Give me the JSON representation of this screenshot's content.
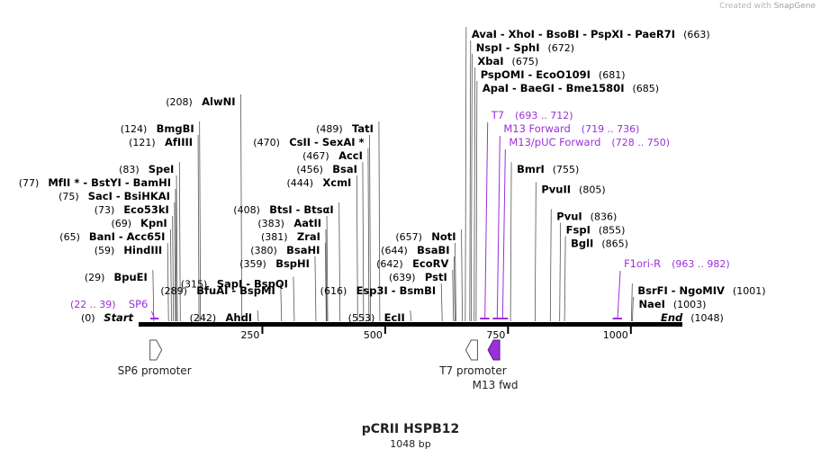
{
  "credit": {
    "prefix": "Created with",
    "brand": "SnapGene"
  },
  "plasmid": {
    "name": "pCRII HSPB12",
    "length_label": "1048 bp",
    "length": 1048
  },
  "colors": {
    "backbone": "#000000",
    "feature": "#9b30d9",
    "enzyme_text": "#000000",
    "position_text": "#000000"
  },
  "ticks": [
    {
      "pos": 250,
      "label": "250"
    },
    {
      "pos": 500,
      "label": "500"
    },
    {
      "pos": 750,
      "label": "750"
    },
    {
      "pos": 1000,
      "label": "1000"
    }
  ],
  "labels": [
    {
      "name": "Start",
      "pos_text": "(0)",
      "site": 0,
      "kind": "terminal",
      "side": "left",
      "row": 22
    },
    {
      "name": "SP6",
      "pos_text": "(22 .. 39)",
      "site": 30,
      "kind": "primer",
      "side": "left",
      "row": 21
    },
    {
      "name": "BpuEI",
      "pos_text": "(29)",
      "site": 29,
      "kind": "enzyme",
      "side": "left",
      "row": 19
    },
    {
      "name": "HindIII",
      "pos_text": "(59)",
      "site": 59,
      "kind": "enzyme",
      "side": "left",
      "row": 17
    },
    {
      "name": "BanI - Acc65I",
      "pos_text": "(65)",
      "site": 65,
      "kind": "enzyme",
      "side": "left",
      "row": 16
    },
    {
      "name": "KpnI",
      "pos_text": "(69)",
      "site": 69,
      "kind": "enzyme",
      "side": "left",
      "row": 15
    },
    {
      "name": "Eco53kI",
      "pos_text": "(73)",
      "site": 73,
      "kind": "enzyme",
      "side": "left",
      "row": 14
    },
    {
      "name": "SacI - BsiHKAI",
      "pos_text": "(75)",
      "site": 75,
      "kind": "enzyme",
      "side": "left",
      "row": 13
    },
    {
      "name": "MfII * - BstYI - BamHI",
      "pos_text": "(77)",
      "site": 77,
      "kind": "enzyme",
      "side": "left",
      "row": 12
    },
    {
      "name": "SpeI",
      "pos_text": "(83)",
      "site": 83,
      "kind": "enzyme",
      "side": "left",
      "row": 11
    },
    {
      "name": "AfIIII",
      "pos_text": "(121)",
      "site": 121,
      "kind": "enzyme",
      "side": "left",
      "row": 9
    },
    {
      "name": "BmgBI",
      "pos_text": "(124)",
      "site": 124,
      "kind": "enzyme",
      "side": "left",
      "row": 8
    },
    {
      "name": "AlwNI",
      "pos_text": "(208)",
      "site": 208,
      "kind": "enzyme",
      "side": "left",
      "row": 6
    },
    {
      "name": "BfuAI - BspMI",
      "pos_text": "(289)",
      "site": 289,
      "kind": "enzyme",
      "side": "left",
      "row": 20
    },
    {
      "name": "SapI - BspQI",
      "pos_text": "(315)",
      "site": 315,
      "kind": "enzyme",
      "side": "left",
      "row": 19.5
    },
    {
      "name": "AhdI",
      "pos_text": "(242)",
      "site": 242,
      "kind": "enzyme",
      "side": "left",
      "row": 22
    },
    {
      "name": "BspHI",
      "pos_text": "(359)",
      "site": 359,
      "kind": "enzyme",
      "side": "left",
      "row": 18
    },
    {
      "name": "BsaHI",
      "pos_text": "(380)",
      "site": 380,
      "kind": "enzyme",
      "side": "left",
      "row": 17
    },
    {
      "name": "ZraI",
      "pos_text": "(381)",
      "site": 381,
      "kind": "enzyme",
      "side": "left",
      "row": 16
    },
    {
      "name": "AatII",
      "pos_text": "(383)",
      "site": 383,
      "kind": "enzyme",
      "side": "left",
      "row": 15
    },
    {
      "name": "BtsI - BtsαI",
      "pos_text": "(408)",
      "site": 408,
      "kind": "enzyme",
      "side": "left",
      "row": 14
    },
    {
      "name": "XcmI",
      "pos_text": "(444)",
      "site": 444,
      "kind": "enzyme",
      "side": "left",
      "row": 12
    },
    {
      "name": "BsaI",
      "pos_text": "(456)",
      "site": 456,
      "kind": "enzyme",
      "side": "left",
      "row": 11
    },
    {
      "name": "AccI",
      "pos_text": "(467)",
      "site": 467,
      "kind": "enzyme",
      "side": "left",
      "row": 10
    },
    {
      "name": "CsII - SexAI *",
      "pos_text": "(470)",
      "site": 470,
      "kind": "enzyme",
      "side": "left",
      "row": 9
    },
    {
      "name": "TatI",
      "pos_text": "(489)",
      "site": 489,
      "kind": "enzyme",
      "side": "left",
      "row": 8
    },
    {
      "name": "Esp3I - BsmBI",
      "pos_text": "(616)",
      "site": 616,
      "kind": "enzyme",
      "side": "left",
      "row": 20
    },
    {
      "name": "EcII",
      "pos_text": "(553)",
      "site": 553,
      "kind": "enzyme",
      "side": "left",
      "row": 22
    },
    {
      "name": "PstI",
      "pos_text": "(639)",
      "site": 639,
      "kind": "enzyme",
      "side": "left",
      "row": 19
    },
    {
      "name": "EcoRV",
      "pos_text": "(642)",
      "site": 642,
      "kind": "enzyme",
      "side": "left",
      "row": 18
    },
    {
      "name": "BsaBI",
      "pos_text": "(644)",
      "site": 644,
      "kind": "enzyme",
      "side": "left",
      "row": 17
    },
    {
      "name": "NotI",
      "pos_text": "(657)",
      "site": 657,
      "kind": "enzyme",
      "side": "left",
      "row": 16
    },
    {
      "name": "AvaI - XhoI - BsoBI - PspXI - PaeR7I",
      "pos_text": "(663)",
      "site": 663,
      "kind": "enzyme",
      "side": "right",
      "row": 1
    },
    {
      "name": "NspI - SphI",
      "pos_text": "(672)",
      "site": 672,
      "kind": "enzyme",
      "side": "right",
      "row": 2
    },
    {
      "name": "XbaI",
      "pos_text": "(675)",
      "site": 675,
      "kind": "enzyme",
      "side": "right",
      "row": 3
    },
    {
      "name": "PspOMI - EcoO109I",
      "pos_text": "(681)",
      "site": 681,
      "kind": "enzyme",
      "side": "right",
      "row": 4
    },
    {
      "name": "ApaI - BaeGI - Bme1580I",
      "pos_text": "(685)",
      "site": 685,
      "kind": "enzyme",
      "side": "right",
      "row": 5
    },
    {
      "name": "T7",
      "pos_text": "(693 .. 712)",
      "site": 703,
      "kind": "primer",
      "side": "right",
      "row": 7
    },
    {
      "name": "M13 Forward",
      "pos_text": "(719 .. 736)",
      "site": 728,
      "kind": "primer",
      "side": "right",
      "row": 8
    },
    {
      "name": "M13/pUC Forward",
      "pos_text": "(728 .. 750)",
      "site": 739,
      "kind": "primer",
      "side": "right",
      "row": 9
    },
    {
      "name": "BmrI",
      "pos_text": "(755)",
      "site": 755,
      "kind": "enzyme",
      "side": "right",
      "row": 11
    },
    {
      "name": "PvuII",
      "pos_text": "(805)",
      "site": 805,
      "kind": "enzyme",
      "side": "right",
      "row": 12.5
    },
    {
      "name": "PvuI",
      "pos_text": "(836)",
      "site": 836,
      "kind": "enzyme",
      "side": "right",
      "row": 14.5
    },
    {
      "name": "FspI",
      "pos_text": "(855)",
      "site": 855,
      "kind": "enzyme",
      "side": "right",
      "row": 15.5
    },
    {
      "name": "BglI",
      "pos_text": "(865)",
      "site": 865,
      "kind": "enzyme",
      "side": "right",
      "row": 16.5
    },
    {
      "name": "F1ori-R",
      "pos_text": "(963 .. 982)",
      "site": 973,
      "kind": "primer",
      "side": "right",
      "row": 18
    },
    {
      "name": "BsrFI - NgoMIV",
      "pos_text": "(1001)",
      "site": 1001,
      "kind": "enzyme",
      "side": "right",
      "row": 20
    },
    {
      "name": "NaeI",
      "pos_text": "(1003)",
      "site": 1003,
      "kind": "enzyme",
      "side": "right",
      "row": 21
    },
    {
      "name": "End",
      "pos_text": "(1048)",
      "site": 1048,
      "kind": "terminal",
      "side": "right",
      "row": 22
    }
  ],
  "primer_bars": [
    {
      "name": "SP6",
      "start": 22,
      "end": 39
    },
    {
      "name": "T7",
      "start": 693,
      "end": 712
    },
    {
      "name": "M13 Forward",
      "start": 719,
      "end": 736
    },
    {
      "name": "M13/pUC Forward",
      "start": 728,
      "end": 750
    },
    {
      "name": "F1ori-R",
      "start": 963,
      "end": 982
    }
  ],
  "features": [
    {
      "name": "SP6 promoter",
      "start": 22,
      "end": 39,
      "direction": "forward",
      "filled": false
    },
    {
      "name": "T7 promoter",
      "start": 693,
      "end": 712,
      "direction": "reverse",
      "filled": false
    },
    {
      "name": "M13 fwd",
      "start": 719,
      "end": 736,
      "direction": "reverse",
      "filled": true
    }
  ]
}
